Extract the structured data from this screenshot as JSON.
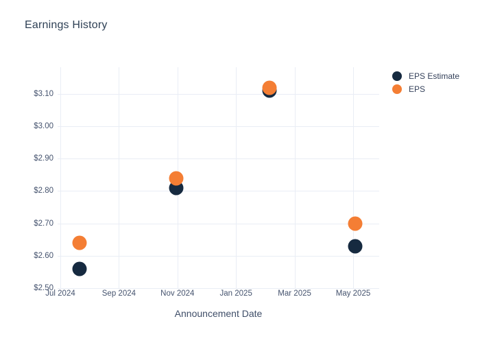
{
  "title": "Earnings History",
  "colors": {
    "eps_estimate": "#162a40",
    "eps": "#f47e34",
    "gridline": "#e9edf5",
    "tick_text": "#45536e",
    "title_text": "#2e4055"
  },
  "legend": {
    "items": [
      {
        "label": "EPS Estimate",
        "color": "#162a40"
      },
      {
        "label": "EPS",
        "color": "#f47e34"
      }
    ]
  },
  "chart_data": {
    "type": "scatter",
    "title": "Earnings History",
    "xlabel": "Announcement Date",
    "ylabel": "",
    "x_ticks": [
      "Jul 2024",
      "Sep 2024",
      "Nov 2024",
      "Jan 2025",
      "Mar 2025",
      "May 2025"
    ],
    "y_ticks": [
      {
        "label": "$3.10",
        "value": 3.1
      },
      {
        "label": "$3.00",
        "value": 3.0
      },
      {
        "label": "$2.90",
        "value": 2.9
      },
      {
        "label": "$2.80",
        "value": 2.8
      },
      {
        "label": "$2.70",
        "value": 2.7
      },
      {
        "label": "$2.60",
        "value": 2.6
      },
      {
        "label": "$2.50",
        "value": 2.5
      }
    ],
    "y_range": [
      2.5,
      3.18
    ],
    "grid": true,
    "legend_position": "top-right",
    "series": [
      {
        "name": "EPS Estimate",
        "color": "#162a40",
        "points": [
          {
            "date_approx": "2024-07-21",
            "value": 2.56
          },
          {
            "date_approx": "2024-10-30",
            "value": 2.81
          },
          {
            "date_approx": "2025-02-05",
            "value": 3.11
          },
          {
            "date_approx": "2025-05-03",
            "value": 2.63
          }
        ]
      },
      {
        "name": "EPS",
        "color": "#f47e34",
        "points": [
          {
            "date_approx": "2024-07-21",
            "value": 2.64
          },
          {
            "date_approx": "2024-10-30",
            "value": 2.84
          },
          {
            "date_approx": "2025-02-05",
            "value": 3.12
          },
          {
            "date_approx": "2025-05-03",
            "value": 2.7
          }
        ]
      }
    ]
  }
}
